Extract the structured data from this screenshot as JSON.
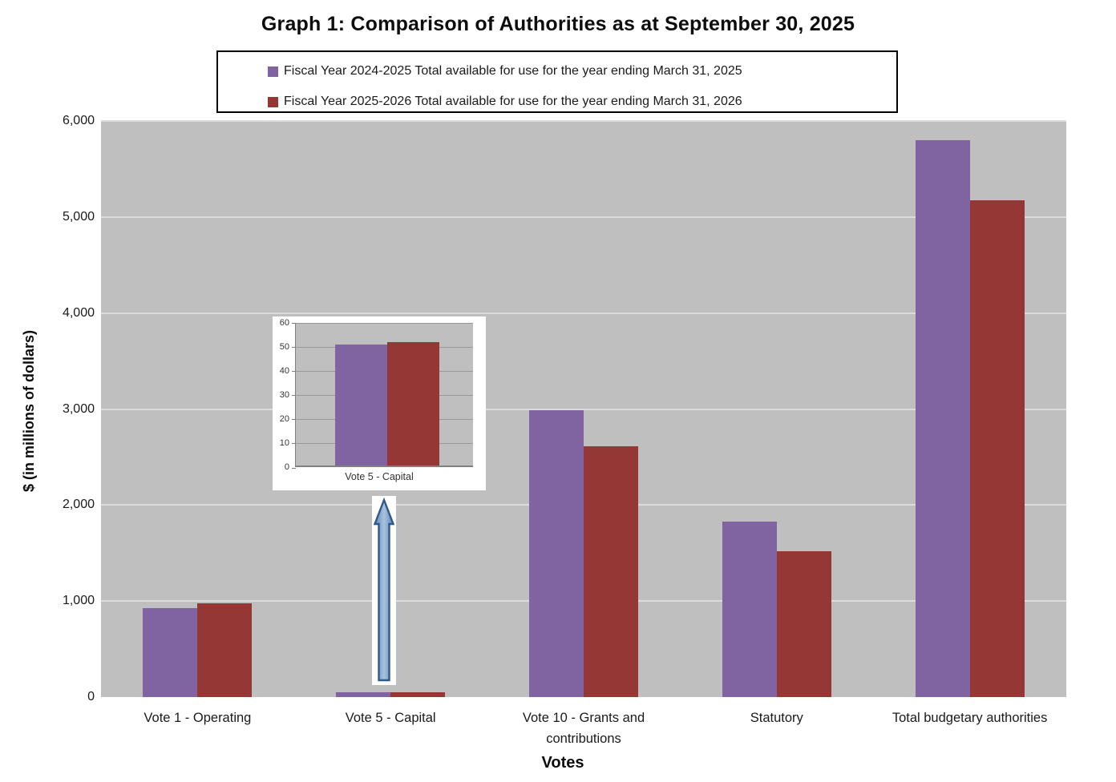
{
  "title": "Graph 1: Comparison of Authorities as at September 30, 2025",
  "legend": {
    "items": [
      {
        "label": "Fiscal Year 2024-2025 Total available for use for the year ending March 31, 2025",
        "color": "#8064A2"
      },
      {
        "label": "Fiscal Year 2025-2026 Total available for use for the year ending March 31, 2026",
        "color": "#953735"
      }
    ]
  },
  "colors": {
    "series_2024": "#8064A2",
    "series_2025": "#953735",
    "plot_background": "#BFBFBF",
    "gridline_main": "#DCDCDC",
    "gridline_inset": "#999999",
    "arrow_fill": "#8FAFD4",
    "arrow_border": "#30598C"
  },
  "chart_data": [
    {
      "type": "bar",
      "title": "Graph 1: Comparison of Authorities as at September 30, 2025",
      "categories": [
        "Vote 1 - Operating",
        "Vote 5 - Capital",
        "Vote 10 - Grants and contributions",
        "Statutory",
        "Total budgetary authorities"
      ],
      "series": [
        {
          "name": "Fiscal Year 2024-2025 Total available for use for the year ending March 31, 2025",
          "color": "#8064A2",
          "values": [
            930,
            50.5,
            2990,
            1830,
            5800
          ]
        },
        {
          "name": "Fiscal Year 2025-2026 Total available for use for the year ending March 31, 2026",
          "color": "#953735",
          "values": [
            980,
            51.5,
            2610,
            1520,
            5170
          ]
        }
      ],
      "xlabel": "Votes",
      "ylabel": "$ (in millions of dollars)",
      "ylim": [
        0,
        6000
      ],
      "ytick_step": 1000,
      "ytick_labels": [
        "0",
        "1,000",
        "2,000",
        "3,000",
        "4,000",
        "5,000",
        "6,000"
      ],
      "grid": true,
      "legend_position": "top"
    },
    {
      "type": "bar",
      "title": "Inset detail of Vote 5 - Capital",
      "categories": [
        "Vote 5 - Capital"
      ],
      "series": [
        {
          "name": "Fiscal Year 2024-2025 Total available for use for the year ending March 31, 2025",
          "color": "#8064A2",
          "values": [
            50.5
          ]
        },
        {
          "name": "Fiscal Year 2025-2026 Total available for use for the year ending March 31, 2026",
          "color": "#953735",
          "values": [
            51.5
          ]
        }
      ],
      "xlabel": "Vote 5 - Capital",
      "ylim": [
        0,
        60
      ],
      "ytick_step": 10,
      "ytick_labels": [
        "0",
        "10",
        "20",
        "30",
        "40",
        "50",
        "60"
      ],
      "grid": true
    }
  ]
}
